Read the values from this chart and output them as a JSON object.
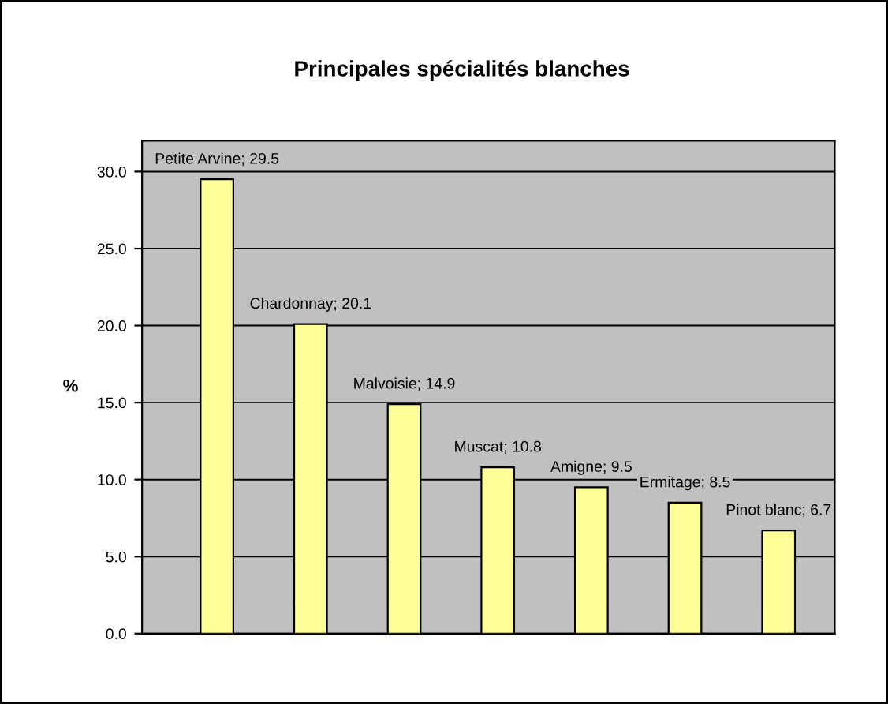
{
  "chart_data": {
    "type": "bar",
    "title": "Principales spécialités blanches",
    "ylabel": "%",
    "categories": [
      null,
      null,
      null,
      null,
      null,
      null,
      null
    ],
    "values": [
      29.5,
      20.1,
      14.9,
      10.8,
      9.5,
      8.5,
      6.7
    ],
    "value_labels": [
      "Petite Arvine; 29.5",
      "Chardonnay; 20.1",
      "Malvoisie; 14.9",
      "Muscat; 10.8",
      "Amigne; 9.5",
      "Ermitage; 8.5",
      "Pinot blanc; 6.7"
    ],
    "color": "#ffff99",
    "ylim": [
      0,
      32
    ],
    "yticks": [
      {
        "value": 0,
        "label": "0.0"
      },
      {
        "value": 5,
        "label": "5.0"
      },
      {
        "value": 10,
        "label": "10.0"
      },
      {
        "value": 15,
        "label": "15.0"
      },
      {
        "value": 20,
        "label": "20.0"
      },
      {
        "value": 25,
        "label": "25.0"
      },
      {
        "value": 30,
        "label": "30.0"
      }
    ],
    "grid": "y",
    "tick_labels": "y"
  }
}
